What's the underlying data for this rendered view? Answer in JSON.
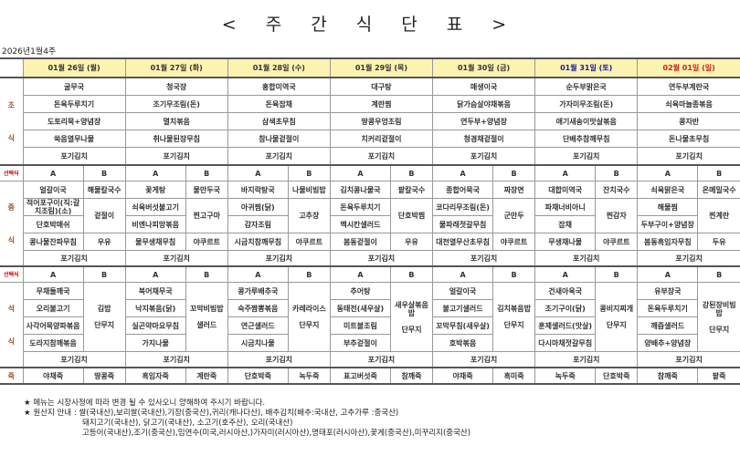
{
  "title": "< 주 간 식 단 표 >",
  "week_label": "2026년1월4주",
  "colors": {
    "header_bg": "#fbf3b0",
    "saturday": "#1c1ca8",
    "sunday": "#d02020",
    "select_label": "#d00000",
    "meal_label": "#a0522d"
  },
  "days": [
    {
      "date": "01월 26일 (월)"
    },
    {
      "date": "01월 27일 (화)"
    },
    {
      "date": "01월 28일 (수)"
    },
    {
      "date": "01월 29일 (목)"
    },
    {
      "date": "01월 30일 (금)"
    },
    {
      "date": "01월 31일 (토)",
      "color": "#1c1ca8"
    },
    {
      "date": "02월 01일 (일)",
      "color": "#d02020"
    }
  ],
  "labels": {
    "breakfast": [
      "조",
      "식"
    ],
    "lunch": [
      "중",
      "식"
    ],
    "dinner": [
      "석",
      "식"
    ],
    "porridge": "죽",
    "select": "선택식",
    "a": "A",
    "b": "B"
  },
  "breakfast": [
    [
      "굴무국",
      "돈육두루치기",
      "도토리묵+양념장",
      "쑥음열무나물",
      "포기김치"
    ],
    [
      "청국장",
      "조기무조림(돈)",
      "멸치볶음",
      "취나물된장무침",
      "포기김치"
    ],
    [
      "홍합미역국",
      "돈육잡채",
      "삼색초무침",
      "참나물겉절이",
      "포기김치"
    ],
    [
      "대구탕",
      "계란찜",
      "땅콩우엉조림",
      "치커리겉절이",
      "포기김치"
    ],
    [
      "매생이국",
      "닭가슴살야채볶음",
      "연두부+양념장",
      "청경채겉절이",
      "포기김치"
    ],
    [
      "순두부맑은국",
      "가자미무조림(돈)",
      "애기새송이맛살볶음",
      "단배추참깨무침",
      "포기김치"
    ],
    [
      "연두부계란국",
      "쇠육마늘종볶음",
      "콩자반",
      "돈나물초무침",
      "포기김치"
    ]
  ],
  "lunch": [
    {
      "a": [
        "얼갈이국",
        "적어포구이(직:갈치조림)(소)",
        "단호박매쉬",
        "콩나물잔파무침"
      ],
      "b": [
        "해물칼국수",
        "겉절이",
        "우유"
      ],
      "kimchi": "포기김치"
    },
    {
      "a": [
        "꽃게탕",
        "쇠육버섯불고기",
        "비엔나피망볶음",
        "물무생채무침"
      ],
      "b": [
        "물만두국",
        "찐고구마",
        "야쿠르트"
      ],
      "kimchi": "포기김치"
    },
    {
      "a": [
        "바지락탕국",
        "아귀찜(닭)",
        "감자조림",
        "시금치참깨무침"
      ],
      "b": [
        "나물비빔밥",
        "고추장",
        "야쿠르트"
      ],
      "kimchi": "포기김치"
    },
    {
      "a": [
        "김치콩나물국",
        "돈육두루치기",
        "멕시칸샐러드",
        "봄동겉절이"
      ],
      "b": [
        "팥칼국수",
        "단호박찜",
        "우유"
      ],
      "kimchi": "포기김치"
    },
    {
      "a": [
        "종합어묵국",
        "코다리무조림(돈)",
        "물파래젓갈무침",
        "대천열무산초무침"
      ],
      "b": [
        "짜장면",
        "군만두",
        "야쿠르트"
      ],
      "kimchi": "포기김치"
    },
    {
      "a": [
        "대합미역국",
        "파채너비아니",
        "잡채",
        "무생채나물"
      ],
      "b": [
        "잔치국수",
        "찐감자",
        "야쿠르트"
      ],
      "kimchi": "포기김치"
    },
    {
      "a": [
        "쇠육맑은국",
        "해물찜",
        "두부구이+양념장",
        "봄동흑임자무침"
      ],
      "b": [
        "온메밀국수",
        "찐계란",
        "두유"
      ],
      "kimchi": "포기김치"
    }
  ],
  "dinner": [
    {
      "a": [
        "무채들깨국",
        "오리불고기",
        "사각어묵양파볶음",
        "도라지참깨볶음"
      ],
      "b": [
        "김밥",
        "단무지"
      ],
      "kimchi": "포기김치"
    },
    {
      "a": [
        "북어채무국",
        "낙지볶음(닭)",
        "실곤약마요무침",
        "가지나물"
      ],
      "b": [
        "꼬막비빔밥",
        "샐러드"
      ],
      "kimchi": "포기김치"
    },
    {
      "a": [
        "콩가루배추국",
        "숙주짬뽕볶음",
        "연근샐러드",
        "시금치나물"
      ],
      "b": [
        "카레라이스",
        "단무지"
      ],
      "kimchi": "포기김치"
    },
    {
      "a": [
        "추어탕",
        "동태전(새우살)",
        "미트볼조림",
        "부추겉절이"
      ],
      "b": [
        "새우살볶음밥",
        "단무지"
      ],
      "kimchi": "포기김치"
    },
    {
      "a": [
        "얼갈이국",
        "불고기샐러드",
        "꼬막무침(새우살)",
        "호박볶음"
      ],
      "b": [
        "김치볶음밥",
        "단무지"
      ],
      "kimchi": "포기김치"
    },
    {
      "a": [
        "건새아욱국",
        "조기구이(닭)",
        "훈제샐러드(맛살)",
        "다시마채젓갈무침"
      ],
      "b": [
        "콩비지찌개",
        "단무지"
      ],
      "kimchi": "포기김치"
    },
    {
      "a": [
        "유부장국",
        "돈육두루치기",
        "깨즙샐러드",
        "양배추+양념장"
      ],
      "b": [
        "강된장비빔밥",
        "단무지"
      ],
      "kimchi": "포기김치"
    }
  ],
  "porridge": [
    [
      "야채죽",
      "땅콩죽"
    ],
    [
      "흑임자죽",
      "계란죽"
    ],
    [
      "단호박죽",
      "녹두죽"
    ],
    [
      "표고버섯죽",
      "참깨죽"
    ],
    [
      "야채죽",
      "흑미죽"
    ],
    [
      "녹두죽",
      "단호박죽"
    ],
    [
      "참깨죽",
      "팥죽"
    ]
  ],
  "notes": {
    "line1": "★ 메뉴는 시장사정에 따라 변경 될 수 있사오니 양해하여 주시기 바랍니다.",
    "line2": "★ 원산지 안내 : 쌀(국내산),보리쌀(국내산),기장(중국산),귀리(캐나다산), 배추김치(배추:국내산, 고추가루 :중국산)",
    "line3": "돼지고기(국내산), 닭고기(국내산), 소고기(호주산), 오리(국내산)",
    "line4": "고등어(국내산),조기(중국산),임연수(미국,러시아산,)가자미(러시아산),명태포(러시아산),꽃게(중국산),미꾸리지(중국산)"
  }
}
